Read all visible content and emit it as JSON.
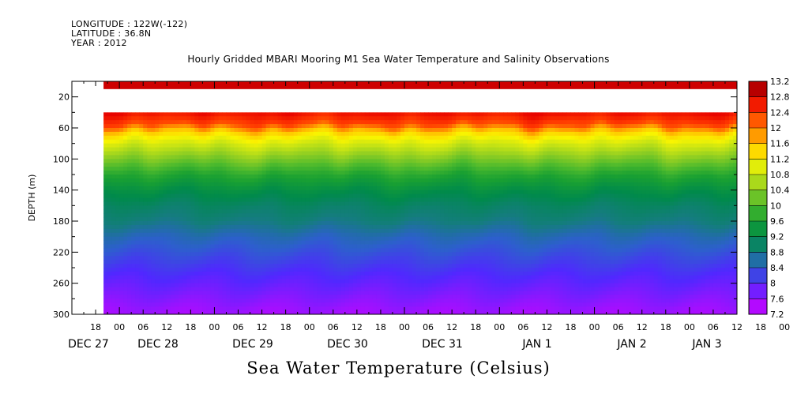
{
  "header": {
    "longitude": "LONGITUDE : 122W(-122)",
    "latitude": "LATITUDE : 36.8N",
    "year": "YEAR : 2012"
  },
  "title": "Hourly Gridded MBARI Mooring M1 Sea Water Temperature and Salinity Observations",
  "bottom_title": "Sea Water Temperature (Celsius)",
  "chart_data": {
    "type": "heatmap",
    "title": "Hourly Gridded MBARI Mooring M1 Sea Water Temperature and Salinity Observations",
    "colorbar_title": "Sea Water Temperature (Celsius)",
    "ylabel": "DEPTH (m)",
    "ylim": [
      300,
      0
    ],
    "y_ticks": [
      20,
      60,
      100,
      140,
      180,
      220,
      260,
      300
    ],
    "x_hour_ticks": [
      "18",
      "00",
      "06",
      "12",
      "18",
      "00",
      "06",
      "12",
      "18",
      "00",
      "06",
      "12",
      "18",
      "00",
      "06",
      "12",
      "18",
      "00",
      "06",
      "12",
      "18",
      "00",
      "06",
      "12",
      "18",
      "00",
      "06",
      "12",
      "18",
      "00",
      "06",
      "12"
    ],
    "x_day_labels": [
      "DEC 27",
      "DEC 28",
      "DEC 29",
      "DEC 30",
      "DEC 31",
      "JAN  1",
      "JAN  2",
      "JAN  3"
    ],
    "x_range_hours_from_dec27_00": [
      12,
      180
    ],
    "data_start_hour": 20,
    "colorbar_levels": [
      "13.2",
      "12.8",
      "12.4",
      "12",
      "11.6",
      "11.2",
      "10.8",
      "10.4",
      "10",
      "9.6",
      "9.2",
      "8.8",
      "8.4",
      "8",
      "7.6",
      "7.2"
    ],
    "color_range": [
      7.2,
      13.2
    ],
    "depth_gap_m": [
      10,
      40
    ],
    "surface_layer_temp_c": 12.9,
    "depth_temp_profile": [
      {
        "depth": 40,
        "temp": 12.7
      },
      {
        "depth": 55,
        "temp": 12.3
      },
      {
        "depth": 65,
        "temp": 11.5
      },
      {
        "depth": 80,
        "temp": 10.9
      },
      {
        "depth": 100,
        "temp": 10.3
      },
      {
        "depth": 120,
        "temp": 9.7
      },
      {
        "depth": 140,
        "temp": 9.3
      },
      {
        "depth": 160,
        "temp": 9.0
      },
      {
        "depth": 180,
        "temp": 8.8
      },
      {
        "depth": 200,
        "temp": 8.5
      },
      {
        "depth": 220,
        "temp": 8.3
      },
      {
        "depth": 240,
        "temp": 8.1
      },
      {
        "depth": 260,
        "temp": 7.9
      },
      {
        "depth": 280,
        "temp": 7.7
      },
      {
        "depth": 300,
        "temp": 7.5
      }
    ]
  }
}
